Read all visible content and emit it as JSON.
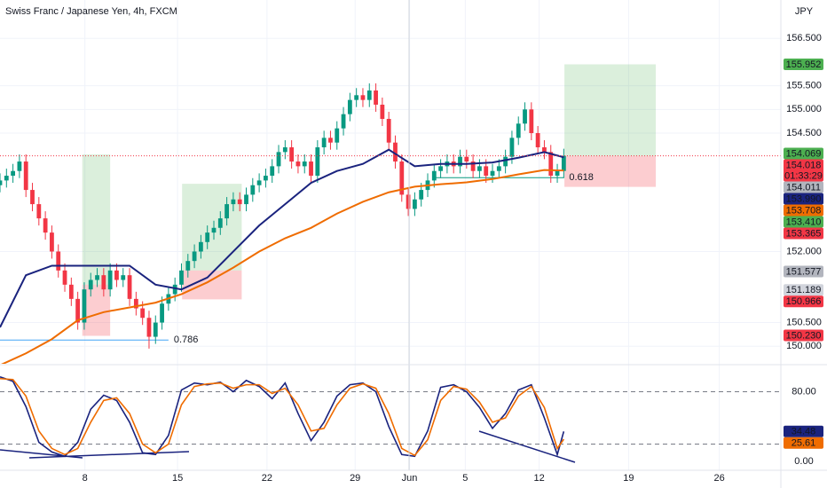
{
  "chart_data": [
    {
      "type": "candlestick",
      "title": "Swiss Franc / Japanese Yen, 4h, FXCM",
      "currency": "JPY",
      "xlim": [
        0,
        120.5
      ],
      "xticks": [
        {
          "value": 13.1,
          "label": "8"
        },
        {
          "value": 27.4,
          "label": "15"
        },
        {
          "value": 41.2,
          "label": "22"
        },
        {
          "value": 54.8,
          "label": "29"
        },
        {
          "value": 63.2,
          "label": "Jun"
        },
        {
          "value": 71.8,
          "label": "5"
        },
        {
          "value": 83.2,
          "label": "12"
        },
        {
          "value": 97.0,
          "label": "19"
        },
        {
          "value": 111.0,
          "label": "26"
        }
      ],
      "ylim": [
        149.63,
        157.31
      ],
      "yticks": [
        {
          "value": 156.5,
          "label": "156.500"
        },
        {
          "value": 155.5,
          "label": "155.500"
        },
        {
          "value": 155,
          "label": "155.000"
        },
        {
          "value": 154.5,
          "label": "154.500"
        },
        {
          "value": 152,
          "label": "152.000"
        },
        {
          "value": 150.5,
          "label": "150.500"
        },
        {
          "value": 150,
          "label": "150.000"
        }
      ],
      "grid": true,
      "up_color": "#089981",
      "down_color": "#f23645",
      "open": [
        153.4,
        153.5,
        153.6,
        153.7,
        153.9,
        153.3,
        153.0,
        152.7,
        152.4,
        152.0,
        151.6,
        151.3,
        151.0,
        150.5,
        151.2,
        151.4,
        151.5,
        151.2,
        151.6,
        151.4,
        151.5,
        151.0,
        150.8,
        150.6,
        150.2,
        150.5,
        150.9,
        151.1,
        151.3,
        151.6,
        151.8,
        152.0,
        152.2,
        152.4,
        152.5,
        152.7,
        153.0,
        153.1,
        153.0,
        153.2,
        153.4,
        153.5,
        153.6,
        153.8,
        154.1,
        154.2,
        153.9,
        153.8,
        153.9,
        153.6,
        154.2,
        154.4,
        154.3,
        154.6,
        154.9,
        155.2,
        155.3,
        155.2,
        155.4,
        155.1,
        154.8,
        154.3,
        153.9,
        153.2,
        152.9,
        153.1,
        153.3,
        153.5,
        153.7,
        153.8,
        153.9,
        153.8,
        154.0,
        153.9,
        153.7,
        153.8,
        153.6,
        153.7,
        153.8,
        154.0,
        154.4,
        154.7,
        155.0,
        154.5,
        154.2,
        154.1,
        153.6,
        153.7
      ],
      "high": [
        153.65,
        153.75,
        153.85,
        154.05,
        154.05,
        153.45,
        153.15,
        152.85,
        152.55,
        152.15,
        151.75,
        151.45,
        151.15,
        151.35,
        151.55,
        151.65,
        151.65,
        151.75,
        151.75,
        151.65,
        151.65,
        151.15,
        150.95,
        150.75,
        150.65,
        151.05,
        151.25,
        151.45,
        151.75,
        151.95,
        152.15,
        152.35,
        152.55,
        152.65,
        152.85,
        153.15,
        153.25,
        153.25,
        153.35,
        153.55,
        153.65,
        153.75,
        153.95,
        154.25,
        154.35,
        154.35,
        154.05,
        154.05,
        154.05,
        154.35,
        154.55,
        154.55,
        154.75,
        155.05,
        155.35,
        155.45,
        155.45,
        155.55,
        155.55,
        155.25,
        154.95,
        154.45,
        154.05,
        153.35,
        153.25,
        153.45,
        153.65,
        153.85,
        153.95,
        154.05,
        154.05,
        154.15,
        154.15,
        154.05,
        153.95,
        153.95,
        153.85,
        153.95,
        154.15,
        154.55,
        154.85,
        155.15,
        155.15,
        154.65,
        154.35,
        154.25,
        153.85,
        154.17
      ],
      "low": [
        153.25,
        153.35,
        153.45,
        153.55,
        153.15,
        152.85,
        152.55,
        152.25,
        151.85,
        151.45,
        151.15,
        150.85,
        150.35,
        150.35,
        151.05,
        151.25,
        151.05,
        151.05,
        151.25,
        151.25,
        150.85,
        150.65,
        150.45,
        149.95,
        150.05,
        150.35,
        150.75,
        150.95,
        151.15,
        151.45,
        151.65,
        151.85,
        152.05,
        152.25,
        152.35,
        152.55,
        152.85,
        152.85,
        152.85,
        153.05,
        153.25,
        153.35,
        153.45,
        153.65,
        153.95,
        153.75,
        153.65,
        153.65,
        153.45,
        153.45,
        154.05,
        154.15,
        154.15,
        154.45,
        154.75,
        155.05,
        155.05,
        155.05,
        154.95,
        154.65,
        154.15,
        153.75,
        153.05,
        152.75,
        152.75,
        152.95,
        153.15,
        153.35,
        153.55,
        153.65,
        153.65,
        153.65,
        153.75,
        153.55,
        153.55,
        153.45,
        153.45,
        153.55,
        153.65,
        153.85,
        154.25,
        154.55,
        154.35,
        154.05,
        153.95,
        153.45,
        153.45,
        153.55
      ],
      "close": [
        153.5,
        153.6,
        153.7,
        153.9,
        153.3,
        153.0,
        152.7,
        152.4,
        152.0,
        151.6,
        151.3,
        151.0,
        150.5,
        151.2,
        151.4,
        151.5,
        151.2,
        151.6,
        151.4,
        151.5,
        151.0,
        150.8,
        150.6,
        150.2,
        150.5,
        150.9,
        151.1,
        151.3,
        151.6,
        151.8,
        152.0,
        152.2,
        152.4,
        152.5,
        152.7,
        153.0,
        153.1,
        153.0,
        153.2,
        153.4,
        153.5,
        153.6,
        153.8,
        154.1,
        154.2,
        153.9,
        153.8,
        153.9,
        153.6,
        154.2,
        154.4,
        154.3,
        154.6,
        154.9,
        155.2,
        155.3,
        155.2,
        155.4,
        155.1,
        154.8,
        154.3,
        153.9,
        153.2,
        152.9,
        153.1,
        153.3,
        153.5,
        153.7,
        153.8,
        153.9,
        153.8,
        154.0,
        153.9,
        153.7,
        153.8,
        153.6,
        153.7,
        153.8,
        154.0,
        154.4,
        154.7,
        155.0,
        154.5,
        154.2,
        154.1,
        153.6,
        153.7,
        154.02
      ],
      "series": [
        {
          "color": "#1a237e",
          "x": [
            0,
            4,
            8,
            12,
            16,
            20,
            24,
            28,
            32,
            36,
            40,
            44,
            48,
            52,
            56,
            60,
            64,
            68,
            72,
            76,
            80,
            84,
            87
          ],
          "values": [
            150.4,
            151.5,
            151.7,
            151.7,
            151.7,
            151.7,
            151.3,
            151.2,
            151.45,
            152.0,
            152.55,
            153.0,
            153.45,
            153.7,
            153.85,
            154.15,
            153.8,
            153.85,
            153.85,
            153.88,
            153.98,
            154.1,
            153.99
          ]
        },
        {
          "color": "#ef6c00",
          "x": [
            0,
            4,
            8,
            12,
            16,
            20,
            24,
            28,
            32,
            36,
            40,
            44,
            48,
            52,
            56,
            60,
            64,
            68,
            72,
            76,
            80,
            84,
            87
          ],
          "values": [
            149.6,
            149.85,
            150.15,
            150.55,
            150.72,
            150.82,
            150.92,
            151.1,
            151.35,
            151.66,
            152.0,
            152.28,
            152.5,
            152.8,
            153.05,
            153.25,
            153.37,
            153.42,
            153.46,
            153.53,
            153.63,
            153.72,
            153.71
          ]
        }
      ],
      "positions": [
        {
          "x": [
            12.7,
            17.0
          ],
          "target": 154.05,
          "entry": 151.3,
          "stop": 150.22
        },
        {
          "x": [
            28.1,
            37.3
          ],
          "target": 153.43,
          "entry": 151.6,
          "stop": 150.99
        },
        {
          "x": [
            87.1,
            101.2
          ],
          "target": 155.952,
          "entry": 154.018,
          "stop": 153.365
        }
      ],
      "fib_levels": [
        {
          "label": "0.786",
          "value": 150.13,
          "x": [
            0,
            26
          ]
        },
        {
          "label": "0.618",
          "value": 153.56,
          "x": [
            67,
            87
          ]
        }
      ],
      "price_tags": [
        {
          "value": 155.952,
          "label": "155.952",
          "color": "#4caf50"
        },
        {
          "value": 154.069,
          "label": "154.069",
          "color": "#4caf50"
        },
        {
          "value": 154.018,
          "label": "154.018",
          "color": "#f23645",
          "sub": "01:33:29"
        },
        {
          "value": 154.011,
          "label": "154.011",
          "color": "#b2b5be"
        },
        {
          "value": 153.99,
          "label": "153.990",
          "color": "#1a237e"
        },
        {
          "value": 153.708,
          "label": "153.708",
          "color": "#ef6c00"
        },
        {
          "value": 153.41,
          "label": "153.410",
          "color": "#4caf50"
        },
        {
          "value": 153.365,
          "label": "153.365",
          "color": "#f23645"
        },
        {
          "value": 151.577,
          "label": "151.577",
          "color": "#b2b5be"
        },
        {
          "value": 151.189,
          "label": "151.189",
          "color": "#d1d4dc"
        },
        {
          "value": 150.966,
          "label": "150.966",
          "color": "#f23645"
        },
        {
          "value": 150.23,
          "label": "150.230",
          "color": "#f23645"
        }
      ]
    },
    {
      "type": "line",
      "ylim": [
        -10,
        110
      ],
      "yticks": [
        {
          "value": 80,
          "label": "80.00"
        },
        {
          "value": 0,
          "label": "0.00"
        }
      ],
      "levels": [
        80,
        20
      ],
      "x": [
        0,
        2,
        4,
        6,
        8,
        10,
        12,
        14,
        16,
        18,
        20,
        22,
        24,
        26,
        28,
        30,
        32,
        34,
        36,
        38,
        40,
        42,
        44,
        46,
        48,
        50,
        52,
        54,
        56,
        58,
        60,
        62,
        64,
        66,
        68,
        70,
        72,
        74,
        76,
        78,
        80,
        82,
        84,
        86,
        87
      ],
      "series": [
        {
          "color": "#1a237e",
          "values": [
            97,
            92,
            63,
            22,
            11,
            6,
            22,
            60,
            76,
            70,
            45,
            10,
            8,
            30,
            82,
            90,
            88,
            91,
            80,
            93,
            86,
            72,
            90,
            55,
            24,
            45,
            75,
            88,
            90,
            80,
            40,
            8,
            6,
            35,
            85,
            88,
            80,
            62,
            38,
            55,
            82,
            88,
            50,
            8,
            34.48
          ]
        },
        {
          "color": "#ef6c00",
          "values": [
            95,
            94,
            75,
            35,
            15,
            8,
            15,
            45,
            70,
            73,
            55,
            20,
            10,
            20,
            65,
            86,
            89,
            90,
            84,
            88,
            88,
            78,
            84,
            65,
            35,
            38,
            65,
            84,
            89,
            84,
            55,
            15,
            7,
            25,
            70,
            86,
            83,
            68,
            45,
            50,
            75,
            86,
            62,
            15,
            25.61
          ]
        }
      ],
      "tags": [
        {
          "value": 34.48,
          "label": "34.48",
          "color": "#1a237e"
        },
        {
          "value": 25.61,
          "label": "25.61",
          "color": "#ef6c00"
        }
      ]
    }
  ]
}
